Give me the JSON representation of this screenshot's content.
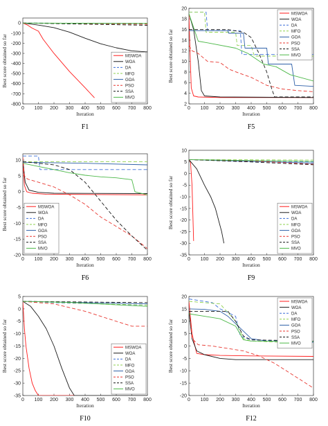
{
  "series_styles": [
    {
      "name": "MSWOA",
      "color": "#ff1a1a",
      "dash": ""
    },
    {
      "name": "WOA",
      "color": "#1a1a1a",
      "dash": ""
    },
    {
      "name": "DA",
      "color": "#3b6fd8",
      "dash": "5,3"
    },
    {
      "name": "MFO",
      "color": "#8fd14f",
      "dash": "5,3"
    },
    {
      "name": "GOA",
      "color": "#2c5fa8",
      "dash": ""
    },
    {
      "name": "PSO",
      "color": "#e8352e",
      "dash": "5,3"
    },
    {
      "name": "SSA",
      "color": "#111111",
      "dash": "5,3"
    },
    {
      "name": "MVO",
      "color": "#4cb848",
      "dash": ""
    }
  ],
  "chart_data": [
    {
      "type": "line",
      "caption": "F1",
      "xlabel": "Iteration",
      "ylabel": "Best score obtained so far",
      "xlim": [
        0,
        800
      ],
      "ylim": [
        -800,
        50
      ],
      "xticks": [
        0,
        100,
        200,
        300,
        400,
        500,
        600,
        700,
        800
      ],
      "yticks": [
        0,
        -100,
        -200,
        -300,
        -400,
        -500,
        -600,
        -700,
        -800
      ],
      "legend_position": "bottom-right",
      "series": [
        {
          "name": "MSWOA",
          "x": [
            0,
            30,
            60,
            100,
            130,
            200,
            300,
            400,
            460
          ],
          "y": [
            0,
            -20,
            -50,
            -80,
            -160,
            -300,
            -480,
            -640,
            -740
          ]
        },
        {
          "name": "WOA",
          "x": [
            0,
            100,
            200,
            300,
            400,
            500,
            600,
            700,
            800
          ],
          "y": [
            0,
            -20,
            -45,
            -90,
            -150,
            -205,
            -245,
            -275,
            -285
          ]
        },
        {
          "name": "DA",
          "x": [
            0,
            800
          ],
          "y": [
            0,
            -3
          ]
        },
        {
          "name": "MFO",
          "x": [
            0,
            800
          ],
          "y": [
            0,
            -2
          ]
        },
        {
          "name": "GOA",
          "x": [
            0,
            800
          ],
          "y": [
            0,
            -5
          ]
        },
        {
          "name": "PSO",
          "x": [
            0,
            400,
            800
          ],
          "y": [
            0,
            -5,
            -12
          ]
        },
        {
          "name": "SSA",
          "x": [
            0,
            400,
            800
          ],
          "y": [
            0,
            -10,
            -22
          ]
        },
        {
          "name": "MVO",
          "x": [
            0,
            800
          ],
          "y": [
            0,
            -4
          ]
        }
      ]
    },
    {
      "type": "line",
      "caption": "F5",
      "xlabel": "Iteration",
      "ylabel": "Best score obtained so far",
      "xlim": [
        0,
        800
      ],
      "ylim": [
        2,
        20
      ],
      "xticks": [
        0,
        100,
        200,
        300,
        400,
        500,
        600,
        700,
        800
      ],
      "yticks": [
        2,
        4,
        6,
        8,
        10,
        12,
        14,
        16,
        18,
        20
      ],
      "legend_position": "top-right",
      "series": [
        {
          "name": "MSWOA",
          "x": [
            0,
            5,
            15,
            30,
            60,
            200,
            800
          ],
          "y": [
            19,
            14,
            5,
            3.5,
            3.3,
            3.2,
            3.2
          ]
        },
        {
          "name": "WOA",
          "x": [
            0,
            30,
            60,
            80,
            100,
            200,
            800
          ],
          "y": [
            19,
            16,
            10,
            4.5,
            3.5,
            3.3,
            3.2
          ]
        },
        {
          "name": "DA",
          "x": [
            0,
            110,
            120,
            330,
            340,
            800
          ],
          "y": [
            19.3,
            19.3,
            15.8,
            15.8,
            11.3,
            11.3
          ]
        },
        {
          "name": "MFO",
          "x": [
            0,
            100,
            110,
            300,
            310,
            400,
            420,
            800
          ],
          "y": [
            19.3,
            19.3,
            15.5,
            15.5,
            13,
            13,
            11,
            11
          ]
        },
        {
          "name": "GOA",
          "x": [
            0,
            250,
            255,
            350,
            360,
            500,
            510,
            660,
            680,
            800
          ],
          "y": [
            15.8,
            15.8,
            15.3,
            15.3,
            12.5,
            12.5,
            9.5,
            9.5,
            5.5,
            5.3
          ]
        },
        {
          "name": "PSO",
          "x": [
            0,
            20,
            60,
            120,
            200,
            260,
            350,
            400,
            500,
            600,
            700,
            800
          ],
          "y": [
            13,
            12,
            11.5,
            10,
            9.8,
            8.5,
            7.5,
            7,
            5.5,
            4.8,
            4.5,
            4.3
          ]
        },
        {
          "name": "SSA",
          "x": [
            0,
            250,
            350,
            400,
            450,
            500,
            530,
            550,
            800
          ],
          "y": [
            16,
            16,
            15.5,
            14.5,
            11.5,
            8,
            5,
            3.3,
            3.3
          ]
        },
        {
          "name": "MVO",
          "x": [
            0,
            60,
            120,
            300,
            380,
            480,
            560,
            650,
            800
          ],
          "y": [
            19,
            13.8,
            13.5,
            12.5,
            11.5,
            9.5,
            9,
            7.5,
            6.3
          ]
        }
      ]
    },
    {
      "type": "line",
      "caption": "F6",
      "xlabel": "Iteration",
      "ylabel": "Best score obtained so far",
      "xlim": [
        0,
        800
      ],
      "ylim": [
        -20,
        12
      ],
      "xticks": [
        0,
        100,
        200,
        300,
        400,
        500,
        600,
        700,
        800
      ],
      "yticks": [
        10,
        5,
        0,
        -5,
        -10,
        -15,
        -20
      ],
      "legend_position": "bottom-left",
      "series": [
        {
          "name": "MSWOA",
          "x": [
            0,
            10,
            25,
            60,
            150,
            800
          ],
          "y": [
            10,
            2,
            0,
            -0.5,
            -0.8,
            -1
          ]
        },
        {
          "name": "WOA",
          "x": [
            0,
            15,
            40,
            100,
            200,
            800
          ],
          "y": [
            10,
            3,
            0.5,
            -0.2,
            -0.5,
            -0.6
          ]
        },
        {
          "name": "DA",
          "x": [
            0,
            100,
            110,
            800
          ],
          "y": [
            11.3,
            11.3,
            7,
            7
          ]
        },
        {
          "name": "MFO",
          "x": [
            0,
            800
          ],
          "y": [
            9.5,
            9.5
          ]
        },
        {
          "name": "GOA",
          "x": [
            0,
            400,
            800
          ],
          "y": [
            9.3,
            9,
            8.5
          ]
        },
        {
          "name": "PSO",
          "x": [
            0,
            10,
            30,
            100,
            200,
            300,
            400,
            500,
            600,
            700,
            800
          ],
          "y": [
            11,
            5,
            4,
            3,
            1.5,
            -1,
            -4,
            -8,
            -11,
            -14,
            -18
          ]
        },
        {
          "name": "SSA",
          "x": [
            0,
            100,
            200,
            300,
            400,
            500,
            600,
            700,
            800
          ],
          "y": [
            9.5,
            9,
            8.5,
            7,
            3,
            -3,
            -9,
            -14,
            -18.5
          ]
        },
        {
          "name": "MVO",
          "x": [
            0,
            100,
            200,
            300,
            400,
            500,
            600,
            700,
            720,
            800
          ],
          "y": [
            9,
            8,
            7,
            6,
            5.2,
            4.7,
            4.4,
            3.8,
            0,
            -1
          ]
        }
      ]
    },
    {
      "type": "line",
      "caption": "F9",
      "xlabel": "Iteration",
      "ylabel": "Best score obtained so far",
      "xlim": [
        0,
        800
      ],
      "ylim": [
        -35,
        10
      ],
      "xticks": [
        0,
        100,
        200,
        300,
        400,
        500,
        600,
        700,
        800
      ],
      "yticks": [
        10,
        5,
        0,
        -5,
        -10,
        -15,
        -20,
        -25,
        -30,
        -35
      ],
      "legend_position": "bottom-right",
      "series": [
        {
          "name": "MSWOA",
          "x": [
            0,
            10,
            20,
            30
          ],
          "y": [
            6,
            5,
            -5,
            -29
          ]
        },
        {
          "name": "WOA",
          "x": [
            0,
            50,
            100,
            140,
            170,
            190,
            210,
            225
          ],
          "y": [
            6,
            2,
            -5,
            -10,
            -15,
            -20,
            -25,
            -30
          ]
        },
        {
          "name": "DA",
          "x": [
            0,
            400,
            800
          ],
          "y": [
            6,
            5.5,
            5
          ]
        },
        {
          "name": "MFO",
          "x": [
            0,
            800
          ],
          "y": [
            6,
            5.8
          ]
        },
        {
          "name": "GOA",
          "x": [
            0,
            800
          ],
          "y": [
            6,
            4.5
          ]
        },
        {
          "name": "PSO",
          "x": [
            0,
            400,
            800
          ],
          "y": [
            6,
            5.5,
            4
          ]
        },
        {
          "name": "SSA",
          "x": [
            0,
            400,
            800
          ],
          "y": [
            6,
            5,
            3.8
          ]
        },
        {
          "name": "MVO",
          "x": [
            0,
            800
          ],
          "y": [
            6,
            5.2
          ]
        }
      ]
    },
    {
      "type": "line",
      "caption": "F10",
      "xlabel": "Iteration",
      "ylabel": "Best score obtained so far",
      "xlim": [
        0,
        800
      ],
      "ylim": [
        -35,
        5
      ],
      "xticks": [
        0,
        100,
        200,
        300,
        400,
        500,
        600,
        700,
        800
      ],
      "yticks": [
        5,
        0,
        -5,
        -10,
        -15,
        -20,
        -25,
        -30,
        -35
      ],
      "legend_position": "bottom-right",
      "series": [
        {
          "name": "MSWOA",
          "x": [
            0,
            10,
            20,
            40,
            60,
            80,
            100,
            800
          ],
          "y": [
            3,
            -8,
            -15,
            -24,
            -30,
            -33,
            -35,
            -35
          ]
        },
        {
          "name": "WOA",
          "x": [
            0,
            50,
            100,
            150,
            200,
            250,
            300,
            330,
            800
          ],
          "y": [
            3,
            1,
            -3,
            -8,
            -15,
            -24,
            -32,
            -35,
            -35
          ]
        },
        {
          "name": "DA",
          "x": [
            0,
            100,
            200,
            300,
            400,
            500,
            600,
            700,
            800
          ],
          "y": [
            3,
            2.8,
            2.5,
            2.3,
            2.2,
            2,
            1.8,
            1.6,
            1.5
          ]
        },
        {
          "name": "MFO",
          "x": [
            0,
            800
          ],
          "y": [
            3,
            1.5
          ]
        },
        {
          "name": "GOA",
          "x": [
            0,
            800
          ],
          "y": [
            3,
            2
          ]
        },
        {
          "name": "PSO",
          "x": [
            0,
            100,
            200,
            300,
            400,
            500,
            600,
            700,
            800
          ],
          "y": [
            3,
            2.5,
            2,
            0.5,
            -1,
            -3,
            -5,
            -7,
            -7
          ]
        },
        {
          "name": "SSA",
          "x": [
            0,
            800
          ],
          "y": [
            3,
            2.5
          ]
        },
        {
          "name": "MVO",
          "x": [
            0,
            300,
            800
          ],
          "y": [
            3,
            2.6,
            1
          ]
        }
      ]
    },
    {
      "type": "line",
      "caption": "F12",
      "xlabel": "Iteration",
      "ylabel": "Best score obtained so far",
      "xlim": [
        0,
        800
      ],
      "ylim": [
        -20,
        20
      ],
      "xticks": [
        0,
        100,
        200,
        300,
        400,
        500,
        600,
        700,
        800
      ],
      "yticks": [
        20,
        15,
        10,
        5,
        0,
        -5,
        -10,
        -15,
        -20
      ],
      "legend_position": "top-right",
      "series": [
        {
          "name": "MSWOA",
          "x": [
            0,
            20,
            50,
            100,
            200,
            400,
            800
          ],
          "y": [
            18,
            5,
            -3,
            -3.5,
            -3.8,
            -4,
            -4.2
          ]
        },
        {
          "name": "WOA",
          "x": [
            0,
            20,
            50,
            100,
            200,
            300,
            400,
            800
          ],
          "y": [
            14,
            3,
            -2,
            -3.5,
            -5,
            -5.5,
            -5.5,
            -5.5
          ]
        },
        {
          "name": "DA",
          "x": [
            0,
            150,
            200,
            300,
            330,
            400,
            800
          ],
          "y": [
            19,
            17.5,
            15,
            12,
            4,
            2.5,
            1.5
          ]
        },
        {
          "name": "MFO",
          "x": [
            0,
            200,
            300,
            350,
            400,
            600,
            800
          ],
          "y": [
            18,
            17,
            10,
            3,
            2,
            1.5,
            0.5
          ]
        },
        {
          "name": "GOA",
          "x": [
            0,
            100,
            200,
            250,
            300,
            400,
            500,
            800
          ],
          "y": [
            15,
            14.8,
            14,
            12,
            9,
            3,
            2,
            1.5
          ]
        },
        {
          "name": "PSO",
          "x": [
            0,
            20,
            60,
            150,
            250,
            350,
            450,
            550,
            650,
            750,
            800
          ],
          "y": [
            18,
            3,
            0.5,
            0,
            -1,
            -2,
            -4,
            -7,
            -11,
            -15,
            -17
          ]
        },
        {
          "name": "SSA",
          "x": [
            0,
            250,
            300,
            350,
            400,
            800
          ],
          "y": [
            14,
            14,
            10,
            4,
            2.5,
            2
          ]
        },
        {
          "name": "MVO",
          "x": [
            0,
            100,
            200,
            300,
            350,
            400,
            800
          ],
          "y": [
            13,
            12,
            11,
            8,
            2.5,
            2,
            1.8
          ]
        }
      ]
    }
  ]
}
